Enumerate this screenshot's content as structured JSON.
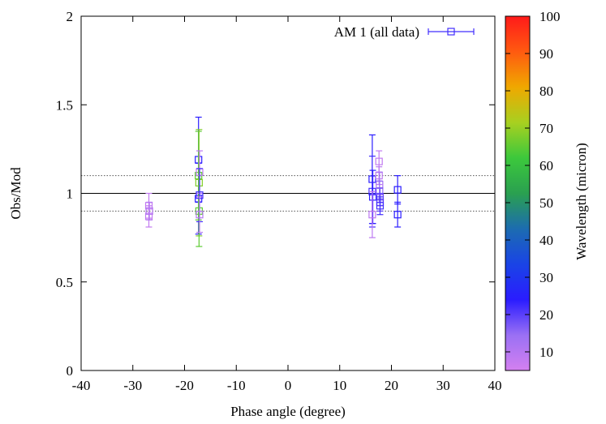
{
  "chart_data": {
    "type": "scatter",
    "xlabel": "Phase angle (degree)",
    "ylabel": "Obs/Mod",
    "xlim": [
      -40,
      40
    ],
    "ylim": [
      0,
      2
    ],
    "xticks": [
      "-40",
      "-30",
      "-20",
      "-10",
      "0",
      "10",
      "20",
      "30",
      "40"
    ],
    "yticks": [
      "0",
      "0.5",
      "1",
      "1.5",
      "2"
    ],
    "grid": false,
    "legend": {
      "position": "top-right",
      "label": "AM 1 (all data)"
    },
    "colorbar": {
      "label": "Wavelength (micron)",
      "range": [
        5,
        100
      ],
      "ticks": [
        "10",
        "20",
        "30",
        "40",
        "50",
        "60",
        "70",
        "80",
        "90",
        "100"
      ],
      "colors": [
        "#d480f0",
        "#9a70f4",
        "#2a1cff",
        "#1a44e6",
        "#1c6cb0",
        "#2aa050",
        "#3cc83c",
        "#a8d020",
        "#f0a800",
        "#ff5a10",
        "#ff1a1a"
      ]
    },
    "reference_lines": [
      {
        "y": 1.0,
        "style": "solid"
      },
      {
        "y": 1.1,
        "style": "dotted"
      },
      {
        "y": 0.9,
        "style": "dotted"
      }
    ],
    "series": [
      {
        "name": "AM 1 (all data)",
        "points": [
          {
            "x": -26.9,
            "y": 0.93,
            "err": 0.07,
            "wl": 8
          },
          {
            "x": -26.9,
            "y": 0.87,
            "err": 0.06,
            "wl": 8
          },
          {
            "x": -26.8,
            "y": 0.9,
            "err": 0.05,
            "wl": 10
          },
          {
            "x": -17.3,
            "y": 1.19,
            "err": 0.24,
            "wl": 24
          },
          {
            "x": -17.3,
            "y": 0.97,
            "err": 0.2,
            "wl": 24
          },
          {
            "x": -17.3,
            "y": 1.1,
            "err": 0.25,
            "wl": 65
          },
          {
            "x": -17.2,
            "y": 1.06,
            "err": 0.3,
            "wl": 68
          },
          {
            "x": -17.2,
            "y": 0.9,
            "err": 0.2,
            "wl": 65
          },
          {
            "x": -17.1,
            "y": 1.12,
            "err": 0.12,
            "wl": 9
          },
          {
            "x": -17.1,
            "y": 0.99,
            "err": 0.15,
            "wl": 22
          },
          {
            "x": -17.1,
            "y": 0.88,
            "err": 0.1,
            "wl": 10
          },
          {
            "x": 16.3,
            "y": 1.08,
            "err": 0.25,
            "wl": 24
          },
          {
            "x": 16.3,
            "y": 1.01,
            "err": 0.2,
            "wl": 22
          },
          {
            "x": 16.4,
            "y": 0.98,
            "err": 0.15,
            "wl": 24
          },
          {
            "x": 16.3,
            "y": 0.88,
            "err": 0.13,
            "wl": 9
          },
          {
            "x": 17.6,
            "y": 1.18,
            "err": 0.06,
            "wl": 8
          },
          {
            "x": 17.6,
            "y": 1.1,
            "err": 0.05,
            "wl": 9
          },
          {
            "x": 17.7,
            "y": 1.05,
            "err": 0.07,
            "wl": 12
          },
          {
            "x": 17.7,
            "y": 1.01,
            "err": 0.06,
            "wl": 15
          },
          {
            "x": 17.8,
            "y": 0.98,
            "err": 0.05,
            "wl": 18
          },
          {
            "x": 17.8,
            "y": 0.95,
            "err": 0.05,
            "wl": 20
          },
          {
            "x": 17.8,
            "y": 0.93,
            "err": 0.05,
            "wl": 22
          },
          {
            "x": 21.2,
            "y": 1.02,
            "err": 0.08,
            "wl": 24
          },
          {
            "x": 21.2,
            "y": 0.88,
            "err": 0.07,
            "wl": 24
          }
        ]
      }
    ]
  }
}
